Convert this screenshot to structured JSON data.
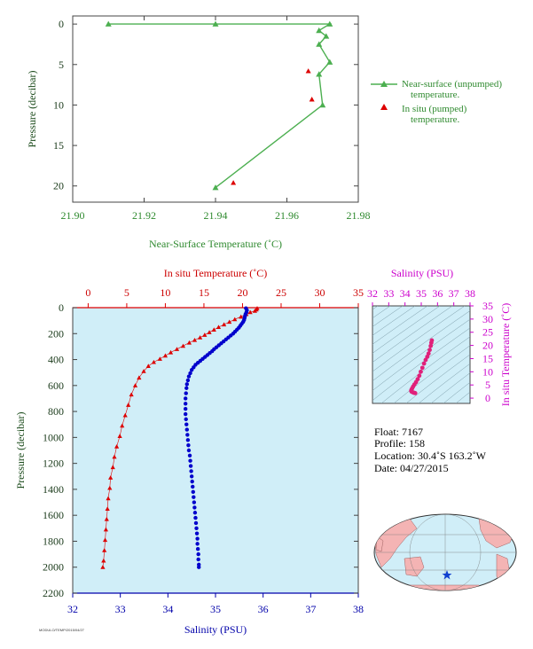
{
  "chart_data": [
    {
      "id": "nst",
      "type": "line",
      "xlabel": "Near-Surface Temperature (˚C)",
      "ylabel": "Pressure (decibar)",
      "xlim": [
        21.9,
        21.98
      ],
      "ylim": [
        22,
        -1
      ],
      "xticks": [
        "21.90",
        "21.92",
        "21.94",
        "21.96",
        "21.98"
      ],
      "yticks": [
        "0",
        "5",
        "10",
        "15",
        "20"
      ],
      "series": [
        {
          "name": "Near-surface (unpumped)\ntemperature.",
          "color": "#4caf50",
          "marker": "triangle",
          "points": [
            [
              21.91,
              0.0
            ],
            [
              21.94,
              0.0
            ],
            [
              21.972,
              0.0
            ],
            [
              21.969,
              0.8
            ],
            [
              21.971,
              1.5
            ],
            [
              21.969,
              2.5
            ],
            [
              21.972,
              4.7
            ],
            [
              21.969,
              6.2
            ],
            [
              21.97,
              10.0
            ],
            [
              21.94,
              20.2
            ]
          ]
        },
        {
          "name": "In situ (pumped)\ntemperature.",
          "color": "#dd0000",
          "marker": "triangle",
          "points": [
            [
              21.966,
              5.8
            ],
            [
              21.967,
              9.3
            ],
            [
              21.945,
              19.6
            ]
          ]
        }
      ]
    },
    {
      "id": "profile",
      "type": "scatter",
      "ylabel": "Pressure (decibar)",
      "ylim": [
        2200,
        0
      ],
      "yticks": [
        "0",
        "200",
        "400",
        "600",
        "800",
        "1000",
        "1200",
        "1400",
        "1600",
        "1800",
        "2000",
        "2200"
      ],
      "top_axis": {
        "label": "In situ Temperature (˚C)",
        "lim": [
          -2,
          35
        ],
        "ticks": [
          "0",
          "5",
          "10",
          "15",
          "20",
          "25",
          "30",
          "35"
        ]
      },
      "bottom_axis": {
        "label": "Salinity (PSU)",
        "lim": [
          32,
          38
        ],
        "ticks": [
          "32",
          "33",
          "34",
          "35",
          "36",
          "37",
          "38"
        ]
      },
      "temperature_series": {
        "color": "#dd0000",
        "marker": "triangle",
        "points": [
          [
            21.9,
            5
          ],
          [
            21.8,
            15
          ],
          [
            21.6,
            25
          ],
          [
            21.0,
            35
          ],
          [
            20.5,
            50
          ],
          [
            19.8,
            70
          ],
          [
            19.0,
            90
          ],
          [
            18.3,
            110
          ],
          [
            17.6,
            130
          ],
          [
            16.9,
            150
          ],
          [
            16.3,
            170
          ],
          [
            15.7,
            190
          ],
          [
            15.1,
            210
          ],
          [
            14.5,
            230
          ],
          [
            13.8,
            250
          ],
          [
            13.1,
            270
          ],
          [
            12.3,
            295
          ],
          [
            11.5,
            320
          ],
          [
            10.7,
            345
          ],
          [
            10.0,
            370
          ],
          [
            9.3,
            395
          ],
          [
            8.5,
            420
          ],
          [
            7.8,
            450
          ],
          [
            7.2,
            490
          ],
          [
            6.6,
            540
          ],
          [
            6.1,
            600
          ],
          [
            5.6,
            670
          ],
          [
            5.2,
            750
          ],
          [
            4.8,
            830
          ],
          [
            4.4,
            910
          ],
          [
            4.1,
            990
          ],
          [
            3.7,
            1070
          ],
          [
            3.4,
            1150
          ],
          [
            3.2,
            1230
          ],
          [
            2.9,
            1310
          ],
          [
            2.8,
            1390
          ],
          [
            2.6,
            1470
          ],
          [
            2.5,
            1550
          ],
          [
            2.4,
            1630
          ],
          [
            2.3,
            1710
          ],
          [
            2.2,
            1790
          ],
          [
            2.1,
            1870
          ],
          [
            2.0,
            1950
          ],
          [
            1.9,
            2000
          ]
        ]
      },
      "salinity_series": {
        "color": "#0000cc",
        "marker": "circle",
        "points": [
          [
            35.64,
            5
          ],
          [
            35.66,
            20
          ],
          [
            35.65,
            35
          ],
          [
            35.63,
            50
          ],
          [
            35.62,
            65
          ],
          [
            35.61,
            80
          ],
          [
            35.6,
            95
          ],
          [
            35.58,
            110
          ],
          [
            35.55,
            125
          ],
          [
            35.52,
            140
          ],
          [
            35.49,
            155
          ],
          [
            35.45,
            170
          ],
          [
            35.41,
            185
          ],
          [
            35.37,
            200
          ],
          [
            35.32,
            215
          ],
          [
            35.27,
            230
          ],
          [
            35.22,
            245
          ],
          [
            35.17,
            260
          ],
          [
            35.12,
            275
          ],
          [
            35.07,
            290
          ],
          [
            35.02,
            305
          ],
          [
            34.97,
            320
          ],
          [
            34.93,
            335
          ],
          [
            34.88,
            350
          ],
          [
            34.83,
            365
          ],
          [
            34.78,
            380
          ],
          [
            34.73,
            395
          ],
          [
            34.68,
            410
          ],
          [
            34.63,
            425
          ],
          [
            34.58,
            440
          ],
          [
            34.54,
            460
          ],
          [
            34.5,
            480
          ],
          [
            34.47,
            505
          ],
          [
            34.44,
            530
          ],
          [
            34.42,
            560
          ],
          [
            34.4,
            590
          ],
          [
            34.39,
            620
          ],
          [
            34.38,
            660
          ],
          [
            34.37,
            700
          ],
          [
            34.37,
            740
          ],
          [
            34.37,
            780
          ],
          [
            34.37,
            820
          ],
          [
            34.38,
            860
          ],
          [
            34.39,
            900
          ],
          [
            34.4,
            940
          ],
          [
            34.41,
            980
          ],
          [
            34.42,
            1020
          ],
          [
            34.43,
            1060
          ],
          [
            34.44,
            1100
          ],
          [
            34.46,
            1140
          ],
          [
            34.47,
            1180
          ],
          [
            34.48,
            1220
          ],
          [
            34.49,
            1260
          ],
          [
            34.5,
            1300
          ],
          [
            34.51,
            1340
          ],
          [
            34.52,
            1380
          ],
          [
            34.53,
            1420
          ],
          [
            34.54,
            1460
          ],
          [
            34.55,
            1500
          ],
          [
            34.56,
            1540
          ],
          [
            34.57,
            1580
          ],
          [
            34.58,
            1620
          ],
          [
            34.59,
            1660
          ],
          [
            34.6,
            1700
          ],
          [
            34.61,
            1740
          ],
          [
            34.62,
            1780
          ],
          [
            34.62,
            1820
          ],
          [
            34.63,
            1860
          ],
          [
            34.64,
            1900
          ],
          [
            34.64,
            1940
          ],
          [
            34.65,
            1980
          ],
          [
            34.65,
            2000
          ]
        ]
      }
    },
    {
      "id": "ts",
      "type": "scatter",
      "top_axis": {
        "label": "Salinity (PSU)",
        "lim": [
          32,
          38
        ],
        "ticks": [
          "32",
          "33",
          "34",
          "35",
          "36",
          "37",
          "38"
        ]
      },
      "right_axis": {
        "label": "In situ Temperature (˚C)",
        "lim": [
          -2,
          35
        ],
        "ticks": [
          "0",
          "5",
          "10",
          "15",
          "20",
          "25",
          "30",
          "35"
        ]
      },
      "color": "#e0207a",
      "points": [
        [
          35.65,
          21.9
        ],
        [
          35.62,
          21.0
        ],
        [
          35.58,
          19.8
        ],
        [
          35.52,
          18.3
        ],
        [
          35.45,
          16.9
        ],
        [
          35.37,
          15.7
        ],
        [
          35.27,
          14.5
        ],
        [
          35.17,
          13.1
        ],
        [
          35.07,
          11.5
        ],
        [
          34.97,
          10.0
        ],
        [
          34.88,
          8.5
        ],
        [
          34.78,
          7.2
        ],
        [
          34.68,
          6.1
        ],
        [
          34.58,
          5.2
        ],
        [
          34.5,
          4.4
        ],
        [
          34.44,
          3.7
        ],
        [
          34.4,
          3.2
        ],
        [
          34.38,
          2.8
        ],
        [
          34.4,
          2.5
        ],
        [
          34.45,
          2.3
        ],
        [
          34.52,
          2.1
        ],
        [
          34.58,
          2.0
        ],
        [
          34.63,
          1.9
        ]
      ]
    }
  ],
  "info": {
    "float": "Float:  7167",
    "profile": "Profile:  158",
    "location": "Location:  30.4˚S  163.2˚W",
    "date": "Date:  04/27/2015"
  },
  "footer_note": "MODULO/TEMP/2015/04/27",
  "colors": {
    "panel_bg": "#d0eef8",
    "green": "#4caf50",
    "red": "#dd0000",
    "blue": "#0000cc",
    "magenta": "#cc00cc",
    "land": "#f4b4b4"
  },
  "map": {
    "marker_icon": "star-icon"
  }
}
